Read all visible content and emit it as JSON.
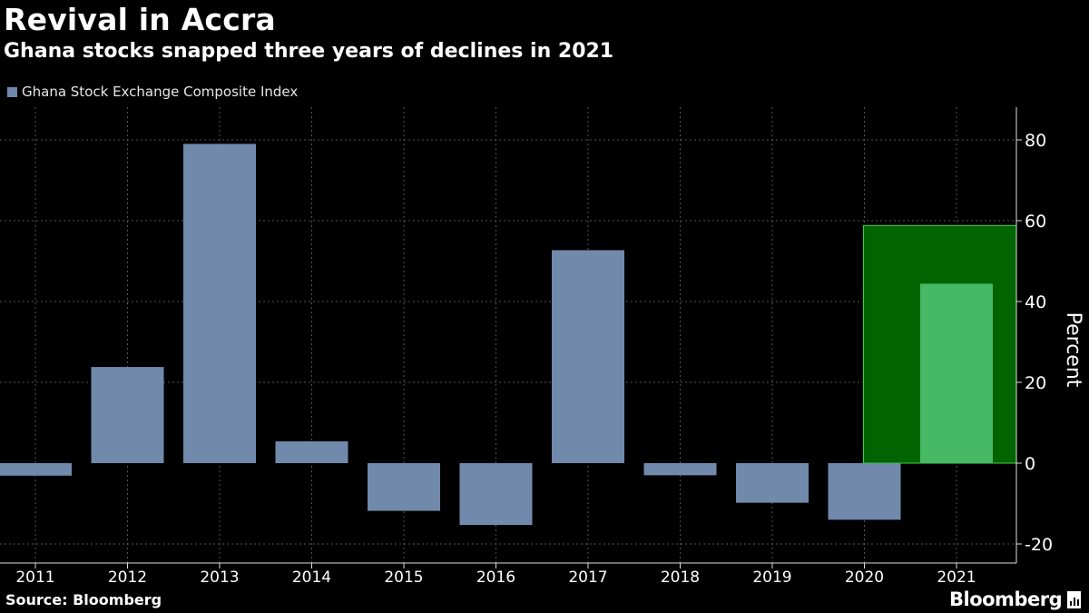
{
  "header": {
    "title": "Revival in Accra",
    "subtitle": "Ghana stocks snapped three years of declines in 2021"
  },
  "legend": {
    "label": "Ghana Stock Exchange Composite Index",
    "color": "#7189AB"
  },
  "footer": {
    "source": "Source: Bloomberg",
    "brand": "Bloomberg"
  },
  "colors": {
    "bar": "#7189AB",
    "highlight_bar": "#47B864",
    "highlight_box": "#006400",
    "highlight_border": "#3BD43B",
    "grid": "#555555",
    "background": "#000000"
  },
  "chart_data": {
    "type": "bar",
    "categories": [
      "2011",
      "2012",
      "2013",
      "2014",
      "2015",
      "2016",
      "2017",
      "2018",
      "2019",
      "2020",
      "2021"
    ],
    "series": [
      {
        "values": [
          -3.1,
          23.8,
          79.0,
          5.4,
          -11.8,
          -15.3,
          52.7,
          -3.0,
          -9.8,
          -14.0,
          44.4
        ]
      }
    ],
    "highlight": {
      "category": "2021",
      "box_top": 58.8
    },
    "ylabel": "Percent",
    "yticks": [
      -20,
      0,
      20,
      40,
      60,
      80
    ],
    "ylim": [
      -24.5,
      88
    ],
    "grid": true,
    "legend_position": "top-left"
  }
}
